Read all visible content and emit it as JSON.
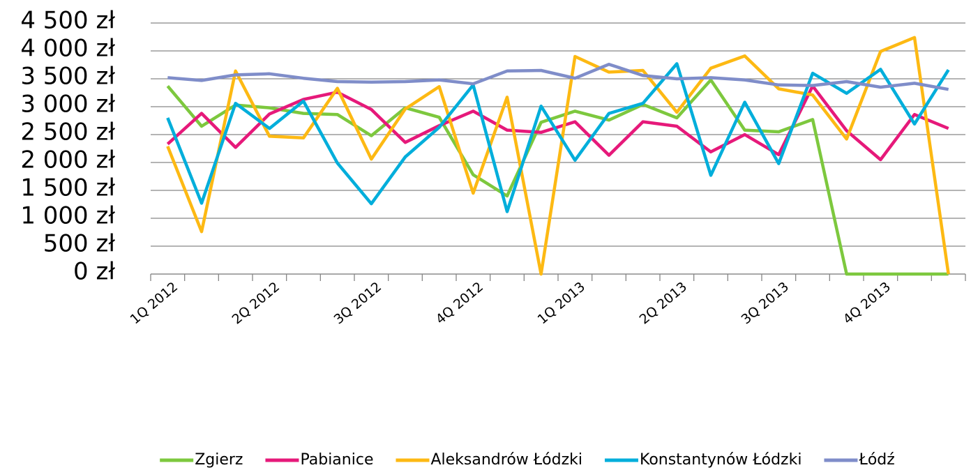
{
  "chart_data": {
    "type": "line",
    "categories": [
      "1Q 2012",
      null,
      null,
      "2Q 2012",
      null,
      null,
      "3Q 2012",
      null,
      null,
      "4Q 2012",
      null,
      null,
      "1Q 2013",
      null,
      null,
      "2Q 2013",
      null,
      null,
      "3Q 2013",
      null,
      null,
      "4Q 2013",
      null,
      null
    ],
    "series": [
      {
        "name": "Zgierz",
        "color": "#7dc83e",
        "values": [
          3370,
          2650,
          3030,
          2980,
          2880,
          2860,
          2480,
          2980,
          2810,
          1780,
          1400,
          2720,
          2920,
          2760,
          3040,
          2800,
          3480,
          2580,
          2550,
          2770,
          0,
          0,
          0,
          0
        ]
      },
      {
        "name": "Pabianice",
        "color": "#e6197a",
        "values": [
          2330,
          2880,
          2270,
          2870,
          3130,
          3260,
          2950,
          2360,
          2660,
          2920,
          2580,
          2540,
          2730,
          2130,
          2730,
          2650,
          2190,
          2500,
          2140,
          3370,
          2570,
          2050,
          2860,
          2610
        ]
      },
      {
        "name": "Aleksandrów Łódzki",
        "color": "#fdb913",
        "values": [
          2290,
          760,
          3640,
          2470,
          2440,
          3330,
          2060,
          2960,
          3360,
          1450,
          3170,
          0,
          3900,
          3620,
          3650,
          2900,
          3690,
          3910,
          3320,
          3210,
          2420,
          3990,
          4240,
          0
        ]
      },
      {
        "name": "Konstantynów Łódzki",
        "color": "#00aedb",
        "values": [
          2800,
          1270,
          3060,
          2610,
          3100,
          1990,
          1260,
          2100,
          2630,
          3390,
          1120,
          3010,
          2040,
          2880,
          3060,
          3770,
          1770,
          3080,
          1980,
          3600,
          3240,
          3670,
          2690,
          3660
        ]
      },
      {
        "name": "Łódź",
        "color": "#7f8dc9",
        "values": [
          3520,
          3470,
          3570,
          3590,
          3510,
          3450,
          3440,
          3450,
          3480,
          3410,
          3640,
          3650,
          3510,
          3760,
          3560,
          3500,
          3520,
          3480,
          3390,
          3380,
          3450,
          3350,
          3420,
          3310
        ]
      }
    ],
    "ylim": [
      0,
      4500
    ],
    "yticks": [
      {
        "value": 0,
        "label": "0 zł"
      },
      {
        "value": 500,
        "label": "500 zł"
      },
      {
        "value": 1000,
        "label": "1 000 zł"
      },
      {
        "value": 1500,
        "label": "1 500 zł"
      },
      {
        "value": 2000,
        "label": "2 000 zł"
      },
      {
        "value": 2500,
        "label": "2 500 zł"
      },
      {
        "value": 3000,
        "label": "3 000 zł"
      },
      {
        "value": 3500,
        "label": "3 500 zł"
      },
      {
        "value": 4000,
        "label": "4 000 zł"
      },
      {
        "value": 4500,
        "label": "4 500 zł"
      }
    ],
    "grid": true,
    "legend": "bottom"
  }
}
